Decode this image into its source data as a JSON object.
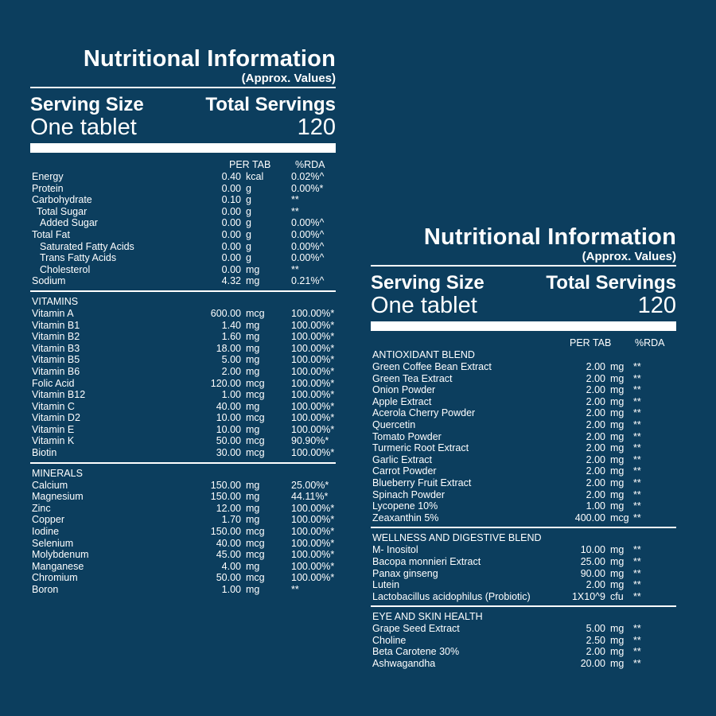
{
  "left": {
    "title": "Nutritional Information",
    "subtitle": "(Approx. Values)",
    "serving_size_label": "Serving Size",
    "total_servings_label": "Total Servings",
    "serving_size_value": "One tablet",
    "total_servings_value": "120",
    "col_per_tab": "PER TAB",
    "col_rda": "%RDA",
    "main_rows": [
      {
        "name": "Energy",
        "value": "0.40",
        "unit": "kcal",
        "rda": "0.02%^",
        "indent": 0
      },
      {
        "name": "Protein",
        "value": "0.00",
        "unit": "g",
        "rda": "0.00%*",
        "indent": 0
      },
      {
        "name": "Carbohydrate",
        "value": "0.10",
        "unit": "g",
        "rda": "**",
        "indent": 0
      },
      {
        "name": "Total Sugar",
        "value": "0.00",
        "unit": "g",
        "rda": "**",
        "indent": 1
      },
      {
        "name": "Added Sugar",
        "value": "0.00",
        "unit": "g",
        "rda": "0.00%^",
        "indent": 2
      },
      {
        "name": "Total Fat",
        "value": "0.00",
        "unit": "g",
        "rda": "0.00%^",
        "indent": 0
      },
      {
        "name": "Saturated Fatty Acids",
        "value": "0.00",
        "unit": "g",
        "rda": "0.00%^",
        "indent": 2
      },
      {
        "name": "Trans Fatty Acids",
        "value": "0.00",
        "unit": "g",
        "rda": "0.00%^",
        "indent": 2
      },
      {
        "name": "Cholesterol",
        "value": "0.00",
        "unit": "mg",
        "rda": "**",
        "indent": 2
      },
      {
        "name": "Sodium",
        "value": "4.32",
        "unit": "mg",
        "rda": "0.21%^",
        "indent": 0
      }
    ],
    "vitamins_title": "VITAMINS",
    "vitamins": [
      {
        "name": "Vitamin A",
        "value": "600.00",
        "unit": "mcg",
        "rda": "100.00%*"
      },
      {
        "name": "Vitamin B1",
        "value": "1.40",
        "unit": "mg",
        "rda": "100.00%*"
      },
      {
        "name": "Vitamin B2",
        "value": "1.60",
        "unit": "mg",
        "rda": "100.00%*"
      },
      {
        "name": "Vitamin B3",
        "value": "18.00",
        "unit": "mg",
        "rda": "100.00%*"
      },
      {
        "name": "Vitamin B5",
        "value": "5.00",
        "unit": "mg",
        "rda": "100.00%*"
      },
      {
        "name": "Vitamin B6",
        "value": "2.00",
        "unit": "mg",
        "rda": "100.00%*"
      },
      {
        "name": "Folic Acid",
        "value": "120.00",
        "unit": "mcg",
        "rda": "100.00%*"
      },
      {
        "name": "Vitamin B12",
        "value": "1.00",
        "unit": "mcg",
        "rda": "100.00%*"
      },
      {
        "name": "Vitamin C",
        "value": "40.00",
        "unit": "mg",
        "rda": "100.00%*"
      },
      {
        "name": "Vitamin D2",
        "value": "10.00",
        "unit": "mcg",
        "rda": "100.00%*"
      },
      {
        "name": "Vitamin E",
        "value": "10.00",
        "unit": "mg",
        "rda": "100.00%*"
      },
      {
        "name": "Vitamin K",
        "value": "50.00",
        "unit": "mcg",
        "rda": "90.90%*"
      },
      {
        "name": "Biotin",
        "value": "30.00",
        "unit": "mcg",
        "rda": "100.00%*"
      }
    ],
    "minerals_title": "MINERALS",
    "minerals": [
      {
        "name": "Calcium",
        "value": "150.00",
        "unit": "mg",
        "rda": "25.00%*"
      },
      {
        "name": "Magnesium",
        "value": "150.00",
        "unit": "mg",
        "rda": "44.11%*"
      },
      {
        "name": "Zinc",
        "value": "12.00",
        "unit": "mg",
        "rda": "100.00%*"
      },
      {
        "name": "Copper",
        "value": "1.70",
        "unit": "mg",
        "rda": "100.00%*"
      },
      {
        "name": "Iodine",
        "value": "150.00",
        "unit": "mcg",
        "rda": "100.00%*"
      },
      {
        "name": "Selenium",
        "value": "40.00",
        "unit": "mcg",
        "rda": "100.00%*"
      },
      {
        "name": "Molybdenum",
        "value": "45.00",
        "unit": "mcg",
        "rda": "100.00%*"
      },
      {
        "name": "Manganese",
        "value": "4.00",
        "unit": "mg",
        "rda": "100.00%*"
      },
      {
        "name": "Chromium",
        "value": "50.00",
        "unit": "mcg",
        "rda": "100.00%*"
      },
      {
        "name": "Boron",
        "value": "1.00",
        "unit": "mg",
        "rda": "**"
      }
    ]
  },
  "right": {
    "title": "Nutritional Information",
    "subtitle": "(Approx. Values)",
    "serving_size_label": "Serving Size",
    "total_servings_label": "Total Servings",
    "serving_size_value": "One tablet",
    "total_servings_value": "120",
    "col_per_tab": "PER TAB",
    "col_rda": "%RDA",
    "antioxidant_title": "ANTIOXIDANT BLEND",
    "antioxidant": [
      {
        "name": "Green Coffee Bean Extract",
        "value": "2.00",
        "unit": "mg",
        "rda": "**"
      },
      {
        "name": "Green Tea Extract",
        "value": "2.00",
        "unit": "mg",
        "rda": "**"
      },
      {
        "name": "Onion Powder",
        "value": "2.00",
        "unit": "mg",
        "rda": "**"
      },
      {
        "name": "Apple Extract",
        "value": "2.00",
        "unit": "mg",
        "rda": "**"
      },
      {
        "name": "Acerola Cherry Powder",
        "value": "2.00",
        "unit": "mg",
        "rda": "**"
      },
      {
        "name": "Quercetin",
        "value": "2.00",
        "unit": "mg",
        "rda": "**"
      },
      {
        "name": "Tomato Powder",
        "value": "2.00",
        "unit": "mg",
        "rda": "**"
      },
      {
        "name": "Turmeric Root Extract",
        "value": "2.00",
        "unit": "mg",
        "rda": "**"
      },
      {
        "name": "Garlic Extract",
        "value": "2.00",
        "unit": "mg",
        "rda": "**"
      },
      {
        "name": "Carrot Powder",
        "value": "2.00",
        "unit": "mg",
        "rda": "**"
      },
      {
        "name": "Blueberry Fruit Extract",
        "value": "2.00",
        "unit": "mg",
        "rda": "**"
      },
      {
        "name": "Spinach Powder",
        "value": "2.00",
        "unit": "mg",
        "rda": "**"
      },
      {
        "name": "Lycopene 10%",
        "value": "1.00",
        "unit": "mg",
        "rda": "**"
      },
      {
        "name": "Zeaxanthin 5%",
        "value": "400.00",
        "unit": "mcg",
        "rda": "**"
      }
    ],
    "wellness_title": "WELLNESS AND DIGESTIVE BLEND",
    "wellness": [
      {
        "name": "M- Inositol",
        "value": "10.00",
        "unit": "mg",
        "rda": "**"
      },
      {
        "name": "Bacopa monnieri Extract",
        "value": "25.00",
        "unit": "mg",
        "rda": "**"
      },
      {
        "name": "Panax ginseng",
        "value": "90.00",
        "unit": "mg",
        "rda": "**"
      },
      {
        "name": "Lutein",
        "value": "2.00",
        "unit": "mg",
        "rda": "**"
      },
      {
        "name": "Lactobacillus acidophilus (Probiotic)",
        "value": "1X10^9",
        "unit": "cfu",
        "rda": "**"
      }
    ],
    "eye_title": "EYE AND SKIN HEALTH",
    "eye": [
      {
        "name": "Grape Seed Extract",
        "value": "5.00",
        "unit": "mg",
        "rda": "**"
      },
      {
        "name": "Choline",
        "value": "2.50",
        "unit": "mg",
        "rda": "**"
      },
      {
        "name": "Beta Carotene 30%",
        "value": "2.00",
        "unit": "mg",
        "rda": "**"
      },
      {
        "name": "Ashwagandha",
        "value": "20.00",
        "unit": "mg",
        "rda": "**"
      }
    ]
  }
}
